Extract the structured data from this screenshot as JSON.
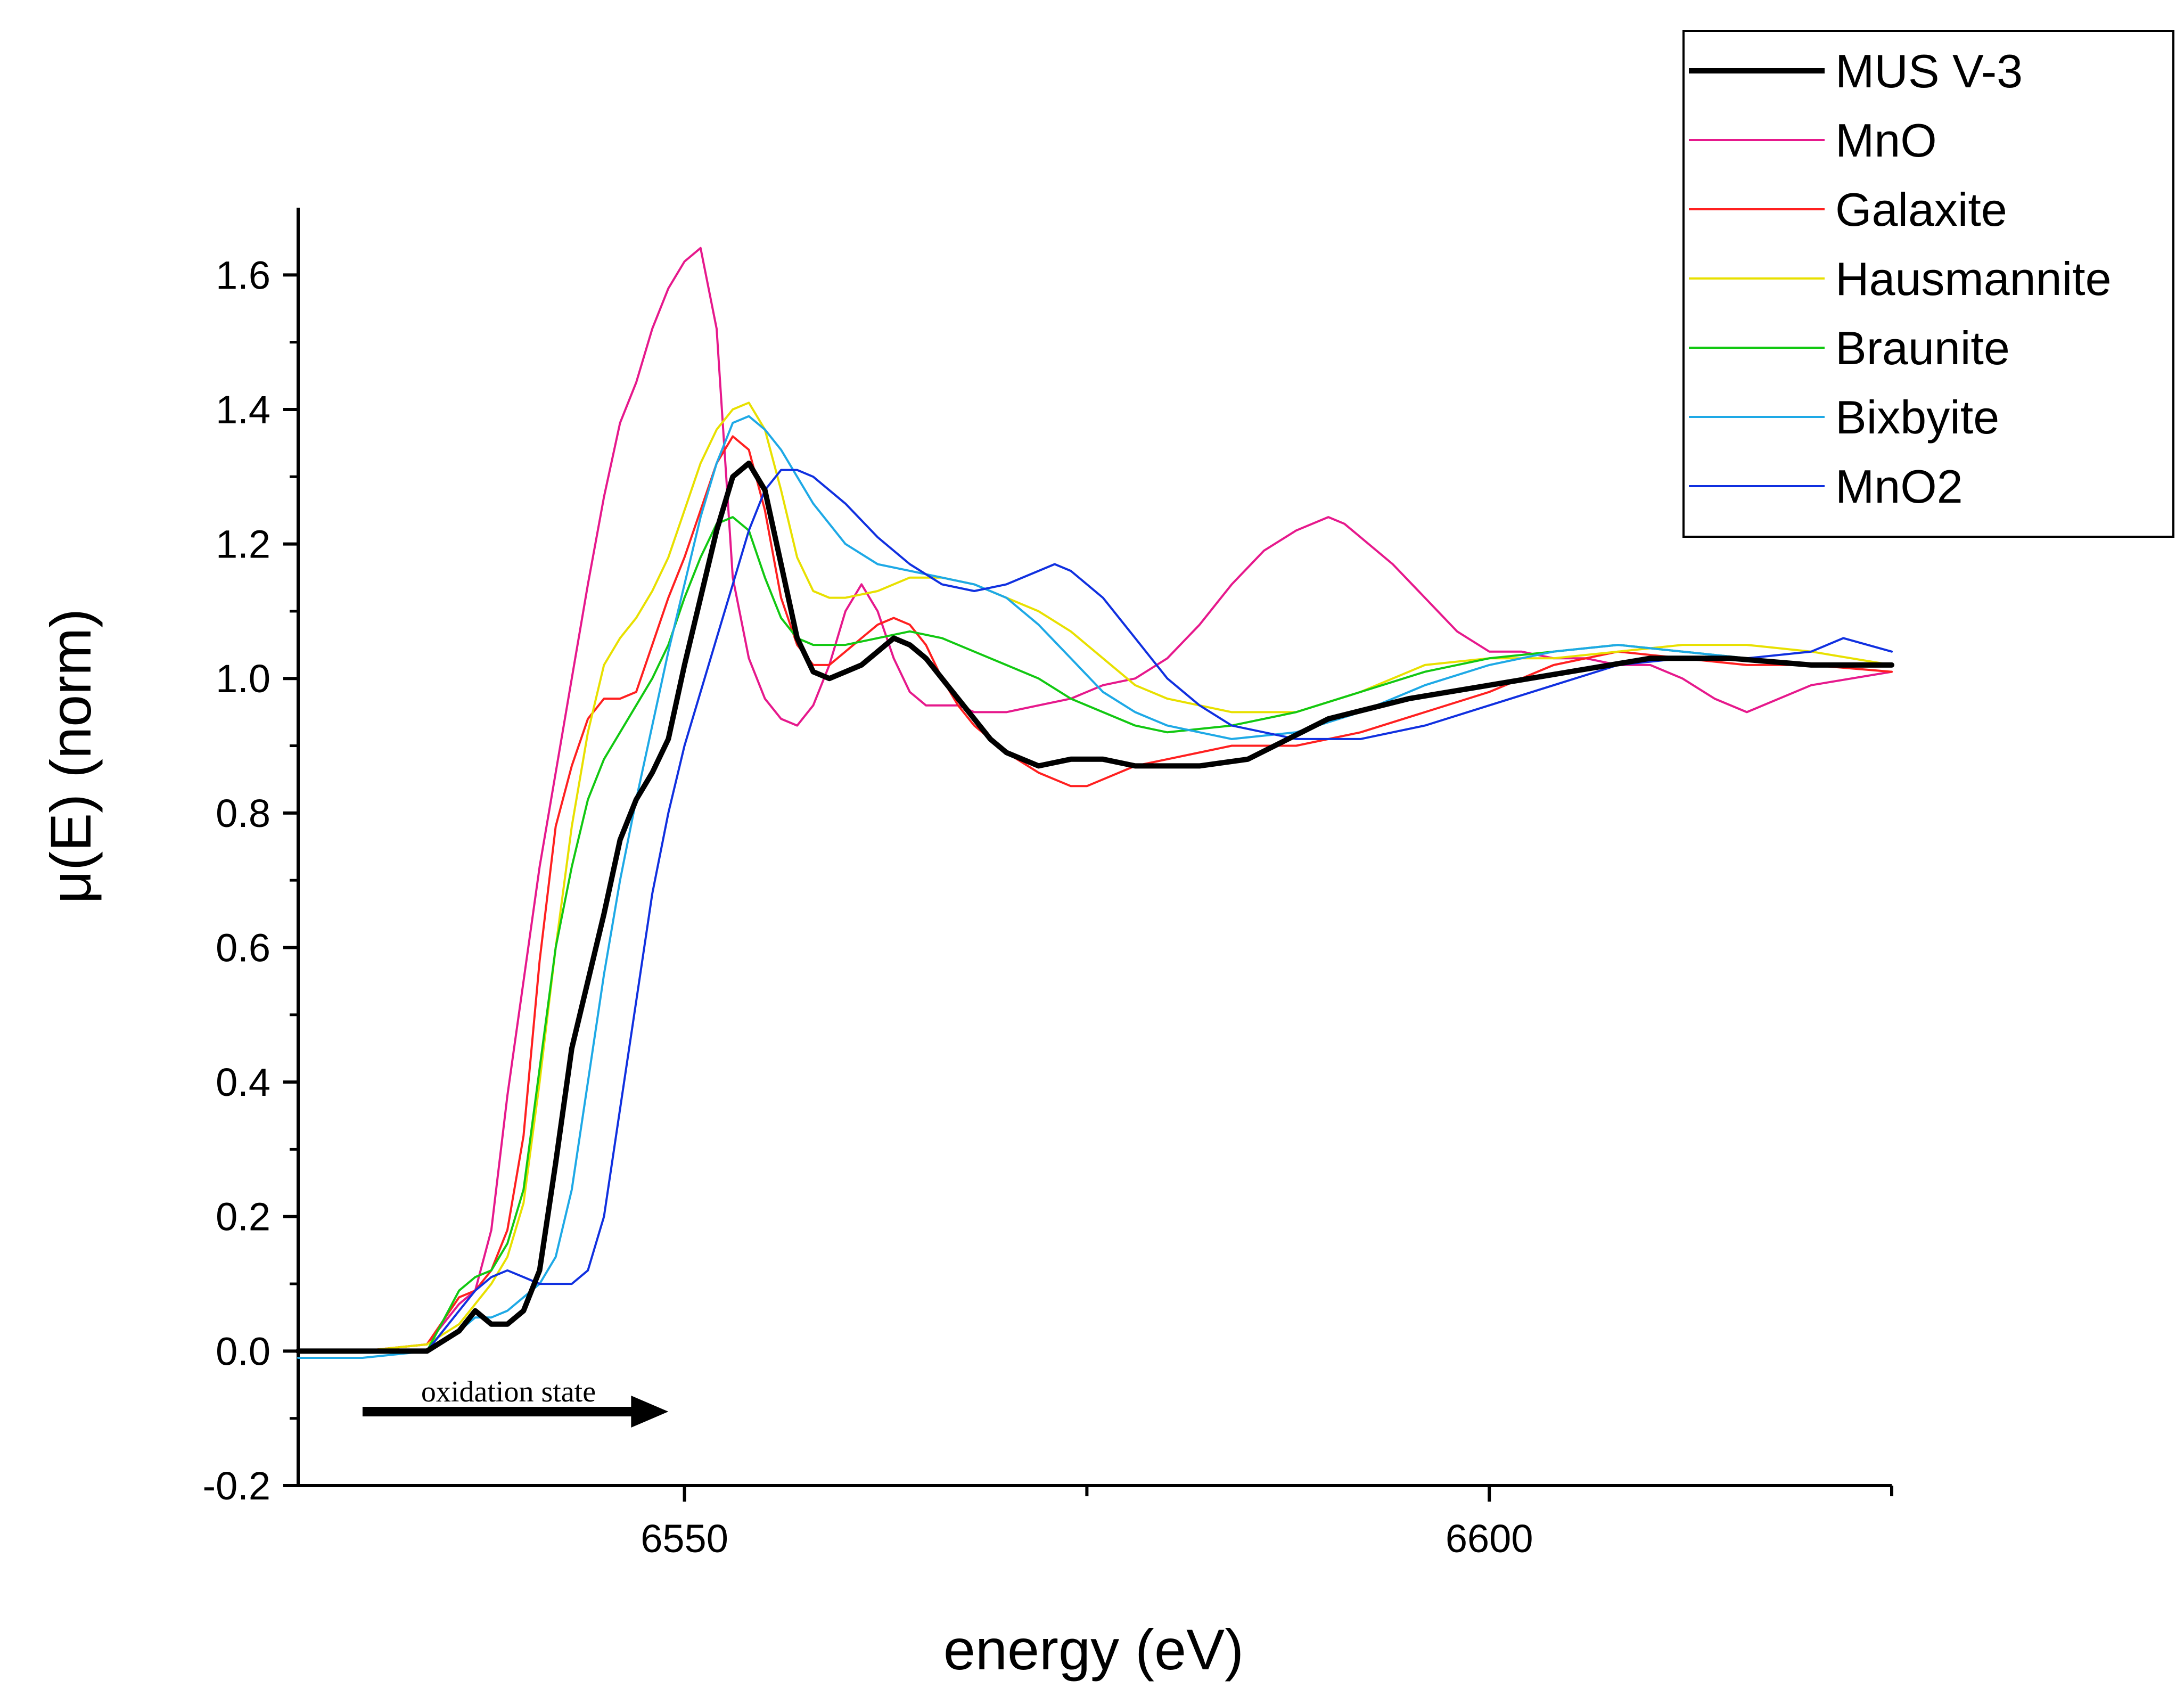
{
  "chart_data": {
    "type": "line",
    "title": "",
    "xlabel": "energy (eV)",
    "ylabel": "μ(E) (norm)",
    "xlim": [
      6526,
      6625
    ],
    "ylim": [
      -0.2,
      1.7
    ],
    "xticks": [
      6550,
      6600
    ],
    "yticks": [
      -0.2,
      0.0,
      0.2,
      0.4,
      0.6,
      0.8,
      1.0,
      1.2,
      1.4,
      1.6
    ],
    "yticks_text": [
      "-0.2",
      "0.0",
      "0.2",
      "0.4",
      "0.6",
      "0.8",
      "1.0",
      "1.2",
      "1.4",
      "1.6"
    ],
    "grid": false,
    "legend_position": "top-right",
    "annotation": {
      "text": "oxidation state",
      "arrow_from_x": 6530,
      "arrow_to_x": 6549,
      "arrow_y": -0.09
    },
    "series": [
      {
        "name": "MUS V-3",
        "color": "#000000",
        "width": 10,
        "x": [
          6526,
          6530,
          6534,
          6536,
          6537,
          6538,
          6539,
          6540,
          6541,
          6542,
          6543,
          6544,
          6545,
          6546,
          6547,
          6548,
          6549,
          6550,
          6551,
          6552,
          6553,
          6554,
          6555,
          6556,
          6557,
          6558,
          6559,
          6560,
          6561,
          6562,
          6563,
          6564,
          6565,
          6566,
          6567,
          6568,
          6569,
          6570,
          6572,
          6574,
          6576,
          6578,
          6580,
          6582,
          6585,
          6590,
          6595,
          6600,
          6605,
          6610,
          6615,
          6620,
          6625
        ],
        "y": [
          0.0,
          0.0,
          0.0,
          0.03,
          0.06,
          0.04,
          0.04,
          0.06,
          0.12,
          0.28,
          0.45,
          0.55,
          0.65,
          0.76,
          0.82,
          0.86,
          0.91,
          1.02,
          1.12,
          1.22,
          1.3,
          1.32,
          1.28,
          1.17,
          1.06,
          1.01,
          1.0,
          1.01,
          1.02,
          1.04,
          1.06,
          1.05,
          1.03,
          1.0,
          0.97,
          0.94,
          0.91,
          0.89,
          0.87,
          0.88,
          0.88,
          0.87,
          0.87,
          0.87,
          0.88,
          0.94,
          0.97,
          0.99,
          1.01,
          1.03,
          1.03,
          1.02,
          1.02
        ]
      },
      {
        "name": "MnO",
        "color": "#e6198c",
        "width": 4,
        "x": [
          6526,
          6530,
          6534,
          6535,
          6536,
          6537,
          6538,
          6539,
          6540,
          6541,
          6542,
          6543,
          6544,
          6545,
          6546,
          6547,
          6548,
          6549,
          6550,
          6551,
          6552,
          6553,
          6554,
          6555,
          6556,
          6557,
          6558,
          6559,
          6560,
          6561,
          6562,
          6563,
          6564,
          6565,
          6566,
          6567,
          6568,
          6570,
          6572,
          6574,
          6576,
          6578,
          6580,
          6582,
          6584,
          6586,
          6588,
          6590,
          6591,
          6592,
          6594,
          6596,
          6598,
          6600,
          6602,
          6604,
          6606,
          6608,
          6610,
          6612,
          6614,
          6616,
          6620,
          6625
        ],
        "y": [
          0.0,
          0.0,
          0.01,
          0.04,
          0.07,
          0.09,
          0.18,
          0.38,
          0.55,
          0.72,
          0.86,
          1.0,
          1.14,
          1.27,
          1.38,
          1.44,
          1.52,
          1.58,
          1.62,
          1.64,
          1.52,
          1.15,
          1.03,
          0.97,
          0.94,
          0.93,
          0.96,
          1.02,
          1.1,
          1.14,
          1.1,
          1.03,
          0.98,
          0.96,
          0.96,
          0.96,
          0.95,
          0.95,
          0.96,
          0.97,
          0.99,
          1.0,
          1.03,
          1.08,
          1.14,
          1.19,
          1.22,
          1.24,
          1.23,
          1.21,
          1.17,
          1.12,
          1.07,
          1.04,
          1.04,
          1.03,
          1.03,
          1.02,
          1.02,
          1.0,
          0.97,
          0.95,
          0.99,
          1.01
        ]
      },
      {
        "name": "Galaxite",
        "color": "#ff2020",
        "width": 4,
        "x": [
          6526,
          6530,
          6534,
          6536,
          6537,
          6538,
          6539,
          6540,
          6541,
          6542,
          6543,
          6544,
          6545,
          6546,
          6547,
          6548,
          6549,
          6550,
          6551,
          6552,
          6553,
          6554,
          6555,
          6556,
          6557,
          6558,
          6559,
          6560,
          6561,
          6562,
          6563,
          6564,
          6565,
          6566,
          6567,
          6568,
          6570,
          6572,
          6574,
          6575,
          6576,
          6578,
          6580,
          6584,
          6588,
          6592,
          6596,
          6600,
          6604,
          6608,
          6612,
          6616,
          6620,
          6625
        ],
        "y": [
          0.0,
          0.0,
          0.01,
          0.08,
          0.09,
          0.12,
          0.18,
          0.32,
          0.58,
          0.78,
          0.87,
          0.94,
          0.97,
          0.97,
          0.98,
          1.05,
          1.12,
          1.18,
          1.25,
          1.32,
          1.36,
          1.34,
          1.25,
          1.12,
          1.05,
          1.02,
          1.02,
          1.04,
          1.06,
          1.08,
          1.09,
          1.08,
          1.05,
          1.0,
          0.96,
          0.93,
          0.89,
          0.86,
          0.84,
          0.84,
          0.85,
          0.87,
          0.88,
          0.9,
          0.9,
          0.92,
          0.95,
          0.98,
          1.02,
          1.04,
          1.03,
          1.02,
          1.02,
          1.01
        ]
      },
      {
        "name": "Hausmannite",
        "color": "#e8e000",
        "width": 4,
        "x": [
          6526,
          6530,
          6534,
          6536,
          6537,
          6538,
          6539,
          6540,
          6541,
          6542,
          6543,
          6544,
          6545,
          6546,
          6547,
          6548,
          6549,
          6550,
          6551,
          6552,
          6553,
          6554,
          6555,
          6556,
          6557,
          6558,
          6559,
          6560,
          6562,
          6564,
          6566,
          6568,
          6570,
          6572,
          6574,
          6576,
          6578,
          6580,
          6584,
          6588,
          6592,
          6596,
          6600,
          6604,
          6608,
          6612,
          6616,
          6620,
          6625
        ],
        "y": [
          0.0,
          0.0,
          0.01,
          0.04,
          0.07,
          0.1,
          0.14,
          0.22,
          0.4,
          0.6,
          0.78,
          0.92,
          1.02,
          1.06,
          1.09,
          1.13,
          1.18,
          1.25,
          1.32,
          1.37,
          1.4,
          1.41,
          1.37,
          1.28,
          1.18,
          1.13,
          1.12,
          1.12,
          1.13,
          1.15,
          1.15,
          1.14,
          1.12,
          1.1,
          1.07,
          1.03,
          0.99,
          0.97,
          0.95,
          0.95,
          0.98,
          1.02,
          1.03,
          1.03,
          1.04,
          1.05,
          1.05,
          1.04,
          1.02
        ]
      },
      {
        "name": "Braunite",
        "color": "#12c812",
        "width": 4,
        "x": [
          6526,
          6530,
          6534,
          6536,
          6537,
          6538,
          6539,
          6540,
          6541,
          6542,
          6543,
          6544,
          6545,
          6546,
          6547,
          6548,
          6549,
          6550,
          6551,
          6552,
          6553,
          6554,
          6555,
          6556,
          6557,
          6558,
          6560,
          6562,
          6564,
          6566,
          6568,
          6570,
          6572,
          6574,
          6576,
          6578,
          6580,
          6584,
          6588,
          6592,
          6596,
          6600,
          6604,
          6608,
          6612,
          6616,
          6620,
          6625
        ],
        "y": [
          0.0,
          0.0,
          0.0,
          0.09,
          0.11,
          0.12,
          0.16,
          0.24,
          0.42,
          0.6,
          0.72,
          0.82,
          0.88,
          0.92,
          0.96,
          1.0,
          1.05,
          1.12,
          1.18,
          1.23,
          1.24,
          1.22,
          1.15,
          1.09,
          1.06,
          1.05,
          1.05,
          1.06,
          1.07,
          1.06,
          1.04,
          1.02,
          1.0,
          0.97,
          0.95,
          0.93,
          0.92,
          0.93,
          0.95,
          0.98,
          1.01,
          1.03,
          1.04,
          1.05,
          1.04,
          1.03,
          1.02,
          1.02
        ]
      },
      {
        "name": "Bixbyite",
        "color": "#1ea9e6",
        "width": 4,
        "x": [
          6526,
          6530,
          6534,
          6536,
          6537,
          6538,
          6539,
          6540,
          6541,
          6542,
          6543,
          6544,
          6545,
          6546,
          6547,
          6548,
          6549,
          6550,
          6551,
          6552,
          6553,
          6554,
          6555,
          6556,
          6557,
          6558,
          6560,
          6562,
          6564,
          6566,
          6568,
          6570,
          6572,
          6574,
          6576,
          6578,
          6580,
          6582,
          6584,
          6588,
          6592,
          6596,
          6600,
          6604,
          6608,
          6612,
          6616,
          6620,
          6625
        ],
        "y": [
          -0.01,
          -0.01,
          0.0,
          0.03,
          0.05,
          0.05,
          0.06,
          0.08,
          0.1,
          0.14,
          0.24,
          0.4,
          0.56,
          0.7,
          0.82,
          0.93,
          1.04,
          1.14,
          1.24,
          1.32,
          1.38,
          1.39,
          1.37,
          1.34,
          1.3,
          1.26,
          1.2,
          1.17,
          1.16,
          1.15,
          1.14,
          1.12,
          1.08,
          1.03,
          0.98,
          0.95,
          0.93,
          0.92,
          0.91,
          0.92,
          0.95,
          0.99,
          1.02,
          1.04,
          1.05,
          1.04,
          1.03,
          1.02,
          1.02
        ]
      },
      {
        "name": "MnO2",
        "color": "#1030e0",
        "width": 4,
        "x": [
          6526,
          6530,
          6534,
          6536,
          6537,
          6538,
          6539,
          6540,
          6541,
          6542,
          6543,
          6544,
          6545,
          6546,
          6547,
          6548,
          6549,
          6550,
          6551,
          6552,
          6553,
          6554,
          6555,
          6556,
          6557,
          6558,
          6560,
          6562,
          6564,
          6566,
          6568,
          6570,
          6572,
          6573,
          6574,
          6576,
          6578,
          6580,
          6582,
          6584,
          6588,
          6592,
          6596,
          6600,
          6604,
          6608,
          6612,
          6616,
          6620,
          6622,
          6625
        ],
        "y": [
          0.0,
          0.0,
          0.0,
          0.06,
          0.09,
          0.11,
          0.12,
          0.11,
          0.1,
          0.1,
          0.1,
          0.12,
          0.2,
          0.36,
          0.52,
          0.68,
          0.8,
          0.9,
          0.98,
          1.06,
          1.14,
          1.22,
          1.28,
          1.31,
          1.31,
          1.3,
          1.26,
          1.21,
          1.17,
          1.14,
          1.13,
          1.14,
          1.16,
          1.17,
          1.16,
          1.12,
          1.06,
          1.0,
          0.96,
          0.93,
          0.91,
          0.91,
          0.93,
          0.96,
          0.99,
          1.02,
          1.03,
          1.03,
          1.04,
          1.06,
          1.04
        ]
      }
    ]
  }
}
